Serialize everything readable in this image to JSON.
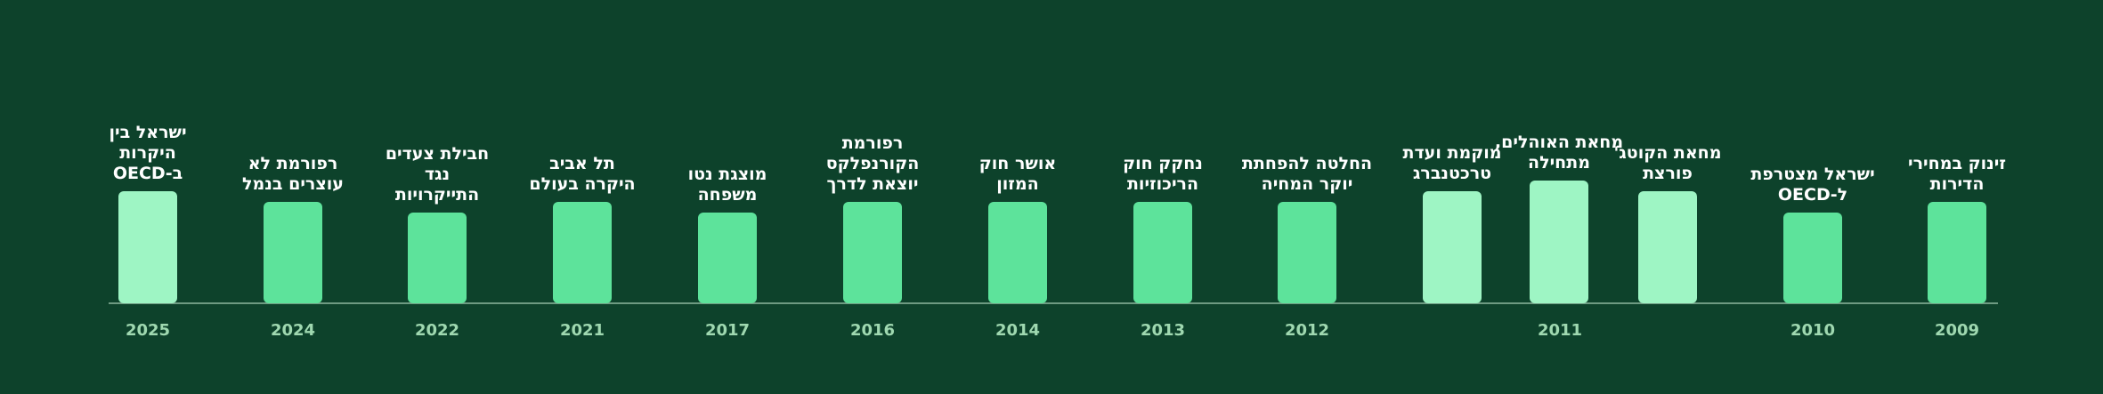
{
  "timeline": [
    {
      "year": "2025",
      "events": [
        {
          "lines": [
            "ישראל בין",
            "היקרות",
            "ב-OECD"
          ]
        }
      ]
    },
    {
      "year": "2024",
      "events": [
        {
          "lines": [
            "רפורמת לא",
            "עוצרים בנמל"
          ]
        }
      ]
    },
    {
      "year": "2022",
      "events": [
        {
          "lines": [
            "חבילת צעדים",
            "נגד",
            "התייקרויות"
          ]
        }
      ]
    },
    {
      "year": "2021",
      "events": [
        {
          "lines": [
            "תל אביב",
            "היקרה בעולם"
          ]
        }
      ]
    },
    {
      "year": "2017",
      "events": [
        {
          "lines": [
            "מוצגת נטו",
            "משפחה"
          ]
        }
      ]
    },
    {
      "year": "2016",
      "events": [
        {
          "lines": [
            "רפורמת",
            "הקורנפלקס",
            "יוצאת לדרך"
          ]
        }
      ]
    },
    {
      "year": "2014",
      "events": [
        {
          "lines": [
            "אושר חוק",
            "המזון"
          ]
        }
      ]
    },
    {
      "year": "2013",
      "events": [
        {
          "lines": [
            "נחקק חוק",
            "הריכוזיות"
          ]
        }
      ]
    },
    {
      "year": "2012",
      "events": [
        {
          "lines": [
            "החלטה להפחתת",
            "יוקר המחיה"
          ]
        }
      ]
    },
    {
      "year": "2011",
      "events": [
        {
          "lines": [
            "מוקמת ועדת",
            "טרכטנברג"
          ]
        },
        {
          "lines": [
            "מחאת האוהלים,",
            "מתחילה"
          ]
        },
        {
          "lines": [
            "מחאת הקוטג'",
            "פורצת"
          ]
        }
      ]
    },
    {
      "year": "2010",
      "events": [
        {
          "lines": [
            "ישראל מצטרפת",
            "ל-OECD"
          ]
        }
      ]
    },
    {
      "year": "2009",
      "events": [
        {
          "lines": [
            "זינוק במחירי",
            "הדירות"
          ]
        }
      ]
    }
  ]
}
